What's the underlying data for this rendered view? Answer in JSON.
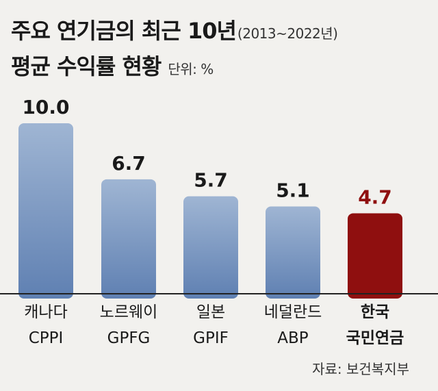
{
  "header": {
    "title_line1": "주요 연기금의 최근 10년",
    "title_period": "(2013~2022년)",
    "title_line2": "평균 수익률 현황",
    "unit": "단위: %"
  },
  "source": "자료: 보건복지부",
  "colors": {
    "bar_default_top": "#9fb5d3",
    "bar_default_bottom": "#5f80b2",
    "bar_highlight": "#8f0f0f",
    "value_default": "#1a1a1a",
    "value_highlight": "#8f0f0f"
  },
  "chart_data": {
    "type": "bar",
    "title": "주요 연기금의 최근 10년(2013~2022년) 평균 수익률 현황",
    "ylabel": "",
    "unit": "%",
    "categories": [
      {
        "line1": "캐나다",
        "line2": "CPPI",
        "highlight": false
      },
      {
        "line1": "노르웨이",
        "line2": "GPFG",
        "highlight": false
      },
      {
        "line1": "일본",
        "line2": "GPIF",
        "highlight": false
      },
      {
        "line1": "네덜란드",
        "line2": "ABP",
        "highlight": false
      },
      {
        "line1": "한국",
        "line2": "국민연금",
        "highlight": true
      }
    ],
    "values": [
      10.0,
      6.7,
      5.7,
      5.1,
      4.7
    ],
    "value_labels": [
      "10.0",
      "6.7",
      "5.7",
      "5.1",
      "4.7"
    ],
    "ylim": [
      0,
      10.0
    ],
    "grid": false,
    "legend": "none"
  }
}
